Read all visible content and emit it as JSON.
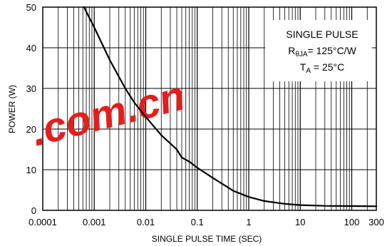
{
  "chart_data": {
    "type": "line",
    "xscale": "log",
    "xlim": [
      0.0001,
      300
    ],
    "ylim": [
      0,
      50
    ],
    "xlabel": "SINGLE PULSE TIME (SEC)",
    "ylabel": "POWER (W)",
    "x_ticks": [
      {
        "value": 0.0001,
        "label": "0.0001"
      },
      {
        "value": 0.001,
        "label": "0.001"
      },
      {
        "value": 0.01,
        "label": "0.01"
      },
      {
        "value": 0.1,
        "label": "0.1"
      },
      {
        "value": 1,
        "label": "1"
      },
      {
        "value": 10,
        "label": "10"
      },
      {
        "value": 100,
        "label": "100"
      },
      {
        "value": 300,
        "label": "300"
      }
    ],
    "y_ticks": [
      {
        "value": 0,
        "label": "0"
      },
      {
        "value": 10,
        "label": "10"
      },
      {
        "value": 20,
        "label": "20"
      },
      {
        "value": 30,
        "label": "30"
      },
      {
        "value": 40,
        "label": "40"
      },
      {
        "value": 50,
        "label": "50"
      }
    ],
    "grid": true,
    "annotation": {
      "line1": "SINGLE PULSE",
      "line2_main": "R",
      "line2_sub": "θJA",
      "line2_rest": "= 125°C/W",
      "line3_main": "T",
      "line3_sub": "A",
      "line3_rest": " = 25°C",
      "placement": "top-right"
    },
    "series": [
      {
        "color": "#000000",
        "x": [
          0.00063,
          0.001,
          0.002,
          0.004,
          0.006,
          0.01,
          0.02,
          0.04,
          0.05,
          0.07,
          0.1,
          0.2,
          0.5,
          1,
          2,
          5,
          10,
          30,
          100,
          300
        ],
        "y": [
          50,
          45,
          37,
          30,
          26.5,
          23,
          18.5,
          15,
          13,
          12,
          10.5,
          8,
          4.8,
          3.3,
          2.3,
          1.6,
          1.3,
          1.1,
          1.05,
          1.0
        ]
      }
    ]
  },
  "watermark": {
    "text": ".com.cn",
    "color": "#e41e1e"
  }
}
